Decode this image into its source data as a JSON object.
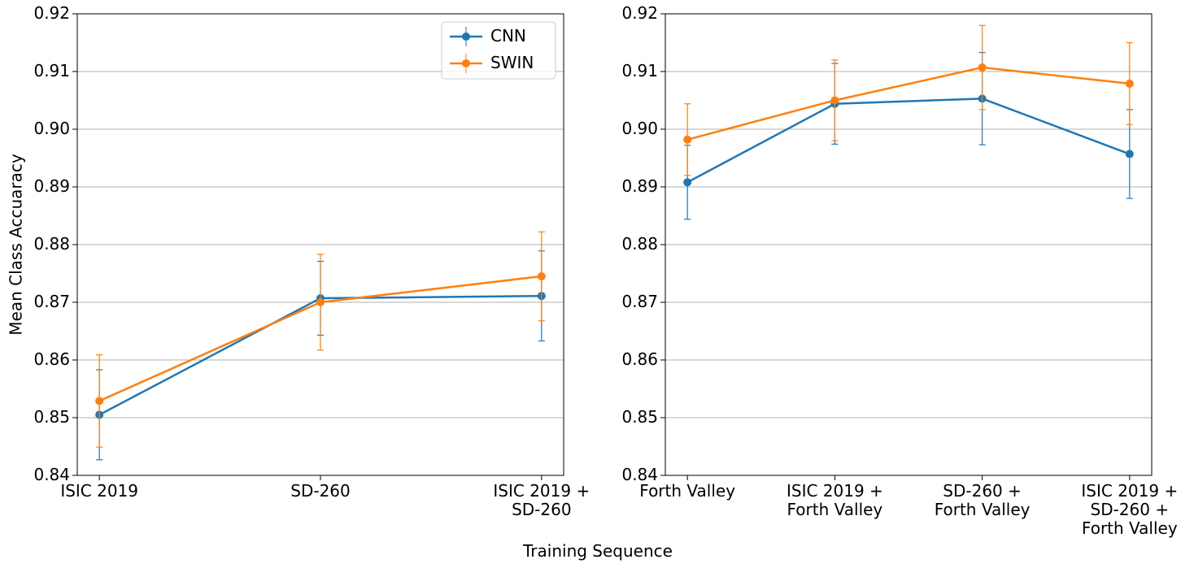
{
  "chart_data": [
    {
      "type": "line",
      "ylabel": "Mean Class Accuaracy",
      "xlabel": "Training Sequence",
      "categories": [
        "ISIC 2019",
        "SD-260",
        "ISIC 2019 +\nSD-260"
      ],
      "series": [
        {
          "name": "CNN",
          "color": "#1f77b4",
          "values": [
            0.8505,
            0.8707,
            0.8711
          ],
          "errors": [
            0.0078,
            0.0064,
            0.0078
          ]
        },
        {
          "name": "SWIN",
          "color": "#ff7f0e",
          "values": [
            0.8529,
            0.87,
            0.8745
          ],
          "errors": [
            0.008,
            0.0083,
            0.0077
          ]
        }
      ],
      "ylim": [
        0.84,
        0.92
      ],
      "yticks": [
        0.84,
        0.85,
        0.86,
        0.87,
        0.88,
        0.89,
        {
          "value": 0.9,
          "label": "0.90"
        },
        0.91,
        0.92
      ],
      "grid": true,
      "legend": "upper right"
    },
    {
      "type": "line",
      "categories": [
        "Forth Valley",
        "ISIC 2019 +\nForth Valley",
        "SD-260 +\nForth Valley",
        "ISIC 2019 +\nSD-260 +\nForth Valley"
      ],
      "series": [
        {
          "name": "CNN",
          "color": "#1f77b4",
          "values": [
            0.8908,
            0.9044,
            0.9053,
            0.8957
          ],
          "errors": [
            0.0064,
            0.007,
            0.008,
            0.0077
          ]
        },
        {
          "name": "SWIN",
          "color": "#ff7f0e",
          "values": [
            0.8982,
            0.905,
            0.9107,
            0.9079
          ],
          "errors": [
            0.0062,
            0.007,
            0.0073,
            0.0071
          ]
        }
      ],
      "ylim": [
        0.84,
        0.92
      ],
      "yticks": [
        0.84,
        0.85,
        0.86,
        0.87,
        0.88,
        0.89,
        {
          "value": 0.9,
          "label": "0.90"
        },
        0.91,
        0.92
      ],
      "grid": true
    }
  ]
}
